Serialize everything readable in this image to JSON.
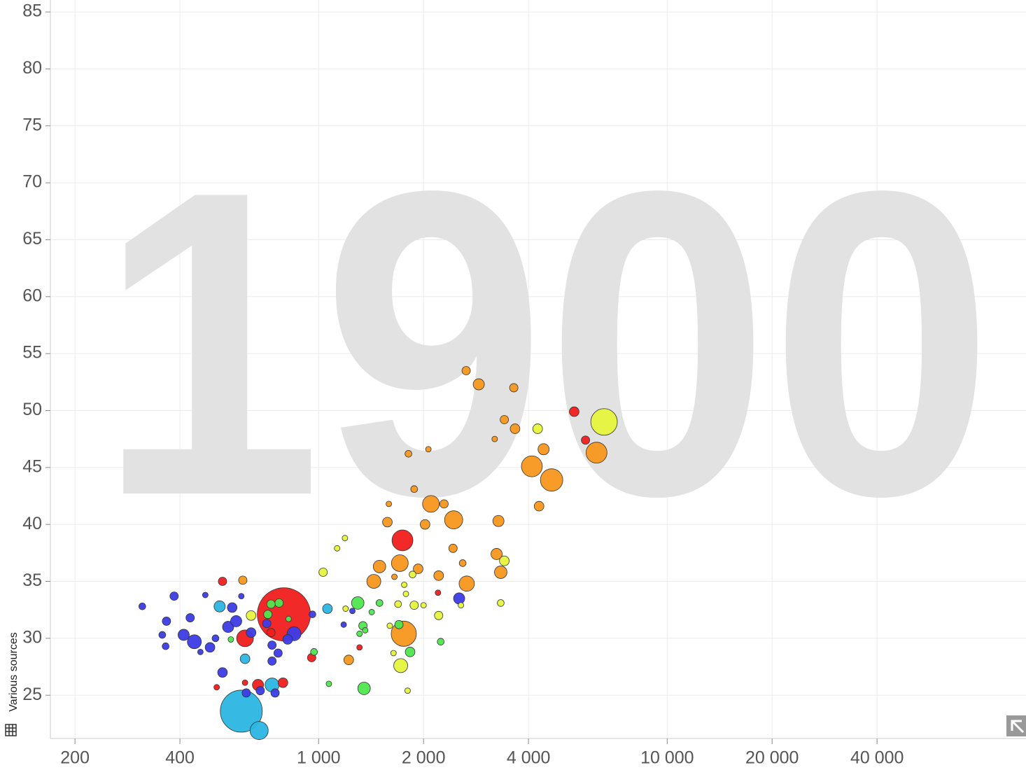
{
  "chart_data": {
    "type": "scatter",
    "year": "1900",
    "source": "Various sources",
    "xscale": "log",
    "grid": true,
    "xlim": [
      170,
      107000
    ],
    "ylim": [
      21.2,
      86.05
    ],
    "xticks": [
      200,
      400,
      {
        "value": 1000,
        "label": "1 000"
      },
      {
        "value": 2000,
        "label": "2 000"
      },
      {
        "value": 4000,
        "label": "4 000"
      },
      {
        "value": 10000,
        "label": "10 000"
      },
      {
        "value": 20000,
        "label": "20 000"
      },
      {
        "value": 40000,
        "label": "40 000"
      }
    ],
    "yticks": [
      25,
      30,
      35,
      40,
      45,
      50,
      55,
      60,
      65,
      70,
      75,
      80,
      85
    ],
    "series": [
      {
        "color": "#f7961e",
        "x": [
          2650,
          2880,
          3630,
          3410,
          3660,
          3200,
          4420,
          4090,
          4660,
          6270,
          1810,
          2065,
          1880,
          1590,
          2100,
          2290,
          1575,
          2020,
          2440,
          3280,
          4290,
          2430,
          3240,
          2590,
          1710,
          1930,
          1495,
          2210,
          3330,
          1440,
          2660,
          1650,
          606,
          1755,
          1220
        ],
        "y": [
          53.5,
          52.3,
          52.0,
          49.2,
          48.4,
          47.5,
          46.6,
          45.1,
          43.9,
          46.3,
          46.2,
          46.6,
          43.1,
          41.8,
          41.8,
          41.8,
          40.2,
          40.0,
          40.4,
          40.3,
          41.6,
          37.9,
          37.4,
          36.6,
          36.6,
          36.1,
          36.3,
          35.5,
          35.8,
          35.0,
          34.8,
          35.4,
          35.1,
          30.4,
          28.1
        ],
        "size": [
          9,
          16,
          9,
          9,
          12,
          4,
          16,
          56,
          64,
          56,
          6,
          4,
          6,
          4,
          36,
          9,
          12,
          12,
          42,
          16,
          12,
          9,
          16,
          6,
          36,
          12,
          20,
          12,
          20,
          25,
          30,
          4,
          9,
          81,
          12
        ]
      },
      {
        "color": "#f01e1e",
        "x": [
          5410,
          5830,
          1740,
          795,
          530,
          615,
          955,
          2200,
          670,
          790,
          615,
          510,
          730,
          1310
        ],
        "y": [
          49.9,
          47.4,
          38.6,
          32.1,
          35.0,
          30.0,
          28.3,
          34.0,
          25.9,
          26.1,
          26.1,
          25.7,
          30.5,
          29.2
        ],
        "size": [
          12,
          9,
          56,
          361,
          9,
          36,
          9,
          4,
          16,
          12,
          4,
          4,
          9,
          4
        ]
      },
      {
        "color": "#e6f53c",
        "x": [
          6590,
          4250,
          3410,
          3330,
          1030,
          1190,
          1130,
          1860,
          1760,
          1780,
          1880,
          2000,
          1690,
          2210,
          2560,
          1720,
          1640,
          1800,
          1600,
          640,
          1195
        ],
        "y": [
          49.0,
          48.4,
          36.8,
          33.1,
          35.8,
          38.8,
          37.9,
          35.6,
          34.7,
          33.9,
          32.9,
          32.9,
          33.0,
          32.0,
          32.9,
          27.6,
          28.7,
          25.4,
          31.1,
          32.0,
          32.6
        ],
        "size": [
          90,
          12,
          12,
          6,
          9,
          4,
          4,
          6,
          4,
          4,
          9,
          4,
          6,
          9,
          4,
          25,
          4,
          4,
          4,
          12,
          4
        ]
      },
      {
        "color": "#4ee64e",
        "x": [
          1295,
          1495,
          1700,
          1340,
          1360,
          1310,
          1420,
          1830,
          2240,
          970,
          1070,
          1350,
          770,
          730,
          715,
          820,
          560
        ],
        "y": [
          33.1,
          33.1,
          31.2,
          31.1,
          30.7,
          30.4,
          32.3,
          28.8,
          29.7,
          28.8,
          26.0,
          25.6,
          33.1,
          33.0,
          32.1,
          31.7,
          29.9
        ],
        "size": [
          20,
          6,
          9,
          9,
          4,
          4,
          4,
          12,
          6,
          6,
          4,
          20,
          9,
          9,
          9,
          4,
          4
        ]
      },
      {
        "color": "#2bb6e3",
        "x": [
          600,
          675,
          735,
          520,
          615,
          1060
        ],
        "y": [
          23.6,
          21.9,
          25.9,
          32.8,
          28.2,
          32.6
        ],
        "size": [
          225,
          42,
          25,
          16,
          12,
          12
        ]
      },
      {
        "color": "#3c3ce6",
        "x": [
          312,
          385,
          473,
          366,
          428,
          410,
          440,
          488,
          458,
          356,
          364,
          506,
          530,
          565,
          600,
          550,
          580,
          640,
          710,
          735,
          765,
          735,
          850,
          960,
          1180,
          1250,
          2530,
          750,
          620,
          680,
          815
        ],
        "y": [
          32.8,
          33.7,
          33.8,
          31.5,
          31.8,
          30.3,
          29.7,
          29.2,
          28.8,
          30.3,
          29.3,
          30.0,
          27.0,
          32.7,
          33.7,
          31.0,
          31.5,
          30.5,
          31.3,
          29.4,
          28.7,
          28.0,
          30.4,
          32.1,
          31.2,
          32.4,
          33.5,
          25.2,
          25.2,
          25.4,
          29.9
        ],
        "size": [
          6,
          9,
          4,
          9,
          9,
          16,
          25,
          12,
          4,
          6,
          6,
          6,
          12,
          12,
          4,
          16,
          16,
          12,
          9,
          9,
          9,
          9,
          25,
          6,
          4,
          4,
          16,
          9,
          9,
          9,
          12
        ]
      }
    ]
  }
}
